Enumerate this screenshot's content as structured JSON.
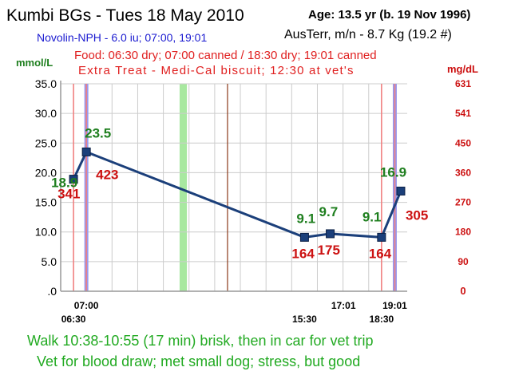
{
  "header": {
    "title": "Kumbi BGs - Tues 18 May 2010",
    "age": "Age: 13.5  yr (b. 19 Nov 1996)",
    "insulin": "Novolin-NPH - 6.0 iu; 07:00, 19:01",
    "breed_weight": "AusTerr, m/n - 8.7 Kg (19.2 #)",
    "food": "Food: 06:30 dry; 07:00 canned / 18:30 dry; 19:01 canned",
    "treat": "Extra Treat - Medi-Cal biscuit; 12:30 at vet's"
  },
  "notes": {
    "line1": "Walk 10:38-10:55 (17 min) brisk, then in car for vet trip",
    "line2": "Vet for blood draw; met small dog; stress, but good"
  },
  "chart_data": {
    "type": "line",
    "ylabel": "mmol/L",
    "ylabel_right": "mg/dL",
    "ylim": [
      0,
      35
    ],
    "xlim": [
      6.0,
      19.5
    ],
    "y_ticks": [
      ".0",
      "5.0",
      "10.0",
      "15.0",
      "20.0",
      "25.0",
      "30.0",
      "35.0"
    ],
    "y_tick_values": [
      0,
      5,
      10,
      15,
      20,
      25,
      30,
      35
    ],
    "right_ticks": [
      "0",
      "90",
      "180",
      "270",
      "360",
      "450",
      "541",
      "631"
    ],
    "x_ticks_upper": [
      {
        "label": "07:00",
        "x": 7.0
      },
      {
        "label": "17:01",
        "x": 17.017
      },
      {
        "label": "19:01",
        "x": 19.017
      }
    ],
    "x_ticks_lower": [
      {
        "label": "06:30",
        "x": 6.5
      },
      {
        "label": "15:30",
        "x": 15.5
      },
      {
        "label": "18:30",
        "x": 18.5
      }
    ],
    "grid": true,
    "series": [
      {
        "color": "#1b3f7a",
        "points": [
          {
            "x": 6.5,
            "y": 18.9,
            "mgdl": "341"
          },
          {
            "x": 7.0,
            "y": 23.5,
            "mgdl": "423"
          },
          {
            "x": 15.5,
            "y": 9.1,
            "mgdl": "164"
          },
          {
            "x": 16.5,
            "y": 9.7,
            "mgdl": "175"
          },
          {
            "x": 18.5,
            "y": 9.1,
            "mgdl": "164"
          },
          {
            "x": 19.25,
            "y": 16.9,
            "mgdl": "305"
          }
        ]
      }
    ],
    "point_labels": [
      "18.9",
      "23.5",
      "9.1",
      "9.7",
      "9.1",
      "16.9"
    ],
    "food_times": [
      6.5,
      7.0,
      18.5,
      19.017
    ],
    "insulin_times": [
      7.0,
      19.017
    ],
    "exercise_span": [
      10.633,
      10.917
    ],
    "treat_time": 12.5,
    "colors": {
      "series": "#1b3f7a",
      "marker": "#1b3f7a",
      "mmol_label": "#1f7f1f",
      "mgdl_label": "#cc1111",
      "food_line": "#f08080",
      "insulin_band": "#9999ee",
      "exercise_band": "#a8e8a0",
      "treat_line": "#8b3a1a",
      "grid": "#cccccc"
    }
  }
}
